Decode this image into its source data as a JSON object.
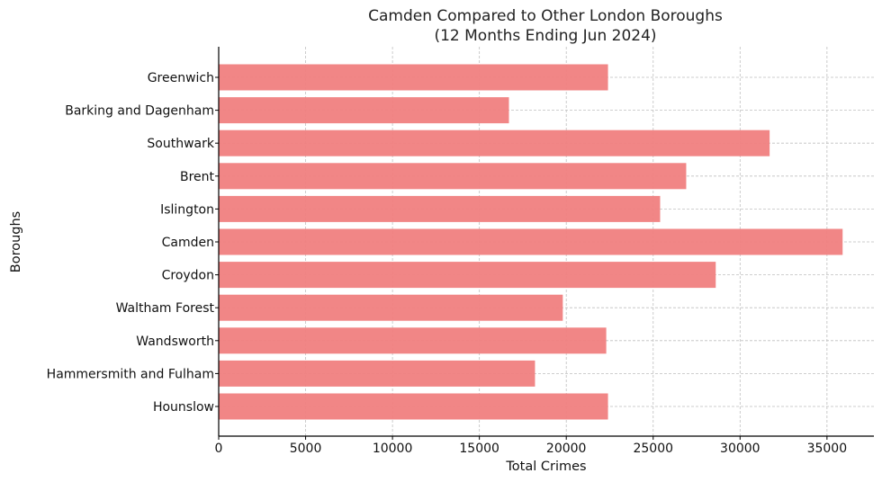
{
  "chart_data": {
    "type": "bar",
    "orientation": "horizontal",
    "title": "Camden Compared to Other London Boroughs",
    "subtitle": "(12 Months Ending Jun 2024)",
    "xlabel": "Total Crimes",
    "ylabel": "Boroughs",
    "categories": [
      "Greenwich",
      "Barking and Dagenham",
      "Southwark",
      "Brent",
      "Islington",
      "Camden",
      "Croydon",
      "Waltham Forest",
      "Wandsworth",
      "Hammersmith and Fulham",
      "Hounslow"
    ],
    "values": [
      22400,
      16700,
      31700,
      26900,
      25400,
      35900,
      28600,
      19800,
      22300,
      18200,
      22400
    ],
    "xlim": [
      0,
      37700
    ],
    "xticks": [
      0,
      5000,
      10000,
      15000,
      20000,
      25000,
      30000,
      35000
    ],
    "xtick_labels": [
      "0",
      "5000",
      "10000",
      "15000",
      "20000",
      "25000",
      "30000",
      "35000"
    ],
    "grid": true,
    "bar_color": "#f08080"
  }
}
